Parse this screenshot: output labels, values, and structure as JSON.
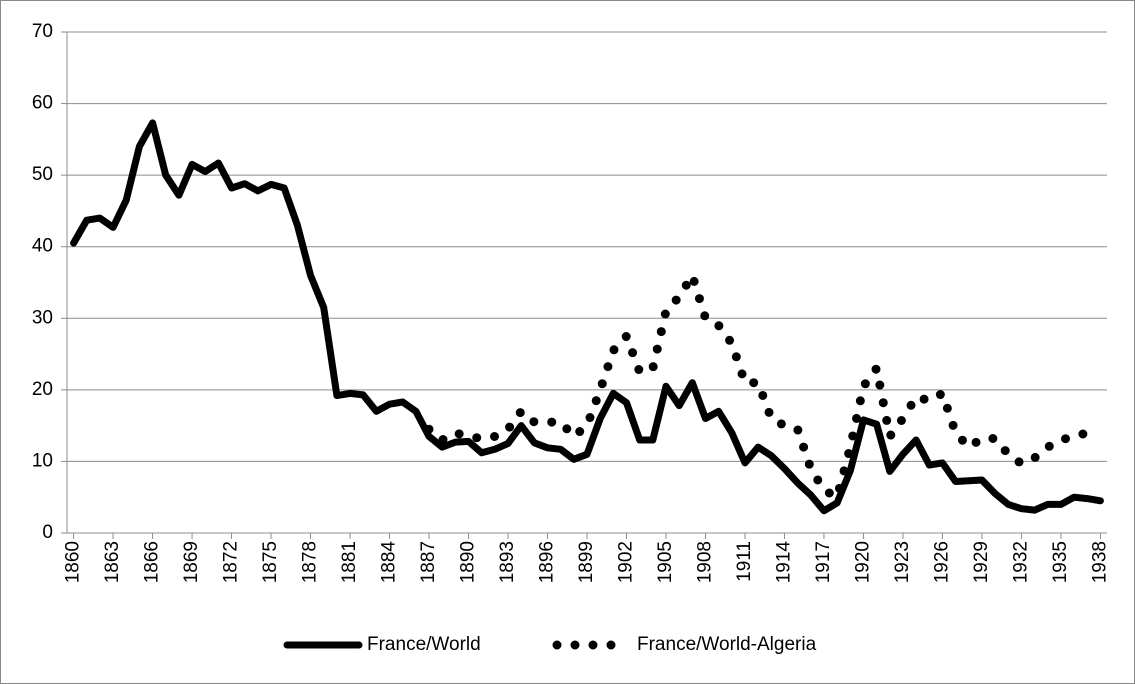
{
  "chart_data": {
    "type": "line",
    "x": [
      1860,
      1861,
      1862,
      1863,
      1864,
      1865,
      1866,
      1867,
      1868,
      1869,
      1870,
      1871,
      1872,
      1873,
      1874,
      1875,
      1876,
      1877,
      1878,
      1879,
      1880,
      1881,
      1882,
      1883,
      1884,
      1885,
      1886,
      1887,
      1888,
      1889,
      1890,
      1891,
      1892,
      1893,
      1894,
      1895,
      1896,
      1897,
      1898,
      1899,
      1900,
      1901,
      1902,
      1903,
      1904,
      1905,
      1906,
      1907,
      1908,
      1909,
      1910,
      1911,
      1912,
      1913,
      1914,
      1915,
      1916,
      1917,
      1918,
      1919,
      1920,
      1921,
      1922,
      1923,
      1924,
      1925,
      1926,
      1927,
      1928,
      1929,
      1930,
      1931,
      1932,
      1933,
      1934,
      1935,
      1936,
      1937,
      1938
    ],
    "series": [
      {
        "name": "France/World",
        "color": "#000000",
        "style": "solid",
        "values": [
          40.5,
          43.7,
          44,
          42.7,
          46.5,
          54,
          57.3,
          50,
          47.2,
          51.5,
          50.5,
          51.7,
          48.2,
          48.8,
          47.8,
          48.7,
          48.2,
          43,
          36,
          31.5,
          19.2,
          19.5,
          19.3,
          17,
          18,
          18.3,
          17,
          13.5,
          12,
          12.7,
          12.8,
          11.2,
          11.7,
          12.5,
          15,
          12.6,
          11.9,
          11.7,
          10.3,
          11,
          16,
          19.5,
          18.2,
          13,
          13,
          20.5,
          17.8,
          21,
          16,
          17,
          14,
          9.8,
          12,
          10.8,
          9,
          7,
          5.3,
          3.1,
          4.2,
          8.7,
          15.8,
          15.2,
          8.6,
          11,
          13,
          9.5,
          9.8,
          7.2,
          7.3,
          7.4,
          5.5,
          4,
          3.4,
          3.2,
          4,
          4,
          5,
          4.8,
          4.5
        ]
      },
      {
        "name": "France/World-Algeria",
        "color": "#000000",
        "style": "dotted",
        "values": [
          null,
          null,
          null,
          null,
          null,
          null,
          null,
          null,
          null,
          null,
          null,
          null,
          null,
          null,
          null,
          null,
          null,
          null,
          null,
          null,
          null,
          null,
          null,
          null,
          null,
          null,
          null,
          14.5,
          13,
          14,
          13.5,
          13.2,
          13.5,
          14.5,
          17,
          15.5,
          15.5,
          15.5,
          13.5,
          15,
          20,
          25.5,
          27.5,
          22.5,
          23,
          31,
          33,
          36,
          30,
          29,
          26.5,
          21,
          21,
          16,
          15,
          14.5,
          9,
          6,
          5,
          12,
          20.5,
          23,
          13.5,
          16,
          19,
          18.5,
          19.5,
          14,
          12,
          13.2,
          13.2,
          11,
          9.7,
          10.5,
          12,
          13,
          13.5,
          14,
          null
        ]
      }
    ],
    "xlim": [
      1859.5,
      1938.5
    ],
    "xticks": [
      1860,
      1863,
      1866,
      1869,
      1872,
      1875,
      1878,
      1881,
      1884,
      1887,
      1890,
      1893,
      1896,
      1899,
      1902,
      1905,
      1908,
      1911,
      1914,
      1917,
      1920,
      1923,
      1926,
      1929,
      1932,
      1935,
      1938
    ],
    "ylim": [
      0,
      70
    ],
    "yticks": [
      0,
      10,
      20,
      30,
      40,
      50,
      60,
      70
    ],
    "grid": true,
    "legend": "bottom"
  }
}
